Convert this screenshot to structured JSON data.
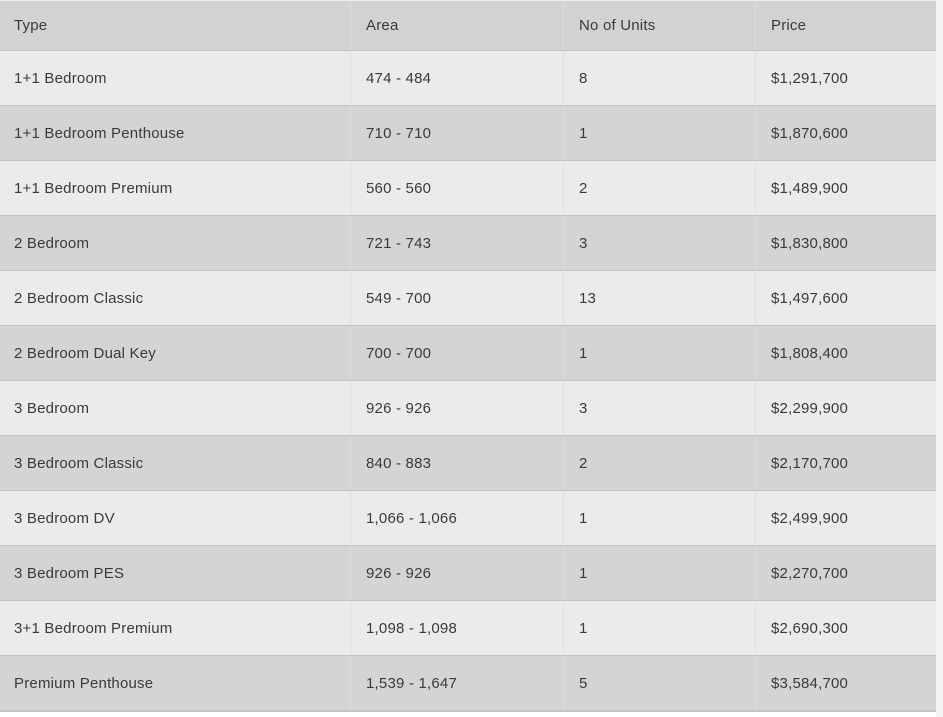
{
  "table": {
    "headers": [
      "Type",
      "Area",
      "No of Units",
      "Price"
    ],
    "rows": [
      {
        "type": "1+1 Bedroom",
        "area": "474 - 484",
        "units": "8",
        "price": "$1,291,700"
      },
      {
        "type": "1+1 Bedroom Penthouse",
        "area": "710 - 710",
        "units": "1",
        "price": "$1,870,600"
      },
      {
        "type": "1+1 Bedroom Premium",
        "area": "560 - 560",
        "units": "2",
        "price": "$1,489,900"
      },
      {
        "type": "2 Bedroom",
        "area": "721 - 743",
        "units": "3",
        "price": "$1,830,800"
      },
      {
        "type": "2 Bedroom Classic",
        "area": "549 - 700",
        "units": "13",
        "price": "$1,497,600"
      },
      {
        "type": "2 Bedroom Dual Key",
        "area": "700 - 700",
        "units": "1",
        "price": "$1,808,400"
      },
      {
        "type": "3 Bedroom",
        "area": "926 - 926",
        "units": "3",
        "price": "$2,299,900"
      },
      {
        "type": "3 Bedroom Classic",
        "area": "840 - 883",
        "units": "2",
        "price": "$2,170,700"
      },
      {
        "type": "3 Bedroom DV",
        "area": "1,066 - 1,066",
        "units": "1",
        "price": "$2,499,900"
      },
      {
        "type": "3 Bedroom PES",
        "area": "926 - 926",
        "units": "1",
        "price": "$2,270,700"
      },
      {
        "type": "3+1 Bedroom Premium",
        "area": "1,098 - 1,098",
        "units": "1",
        "price": "$2,690,300"
      },
      {
        "type": "Premium Penthouse",
        "area": "1,539 - 1,647",
        "units": "5",
        "price": "$3,584,700"
      }
    ]
  },
  "colors": {
    "header_bg": "#d2d2d2",
    "row_light": "#ebebeb",
    "row_dark": "#d4d4d4",
    "row_separator": "#c6c6c6",
    "column_divider": "#dedede",
    "text": "#3a3a3a"
  }
}
